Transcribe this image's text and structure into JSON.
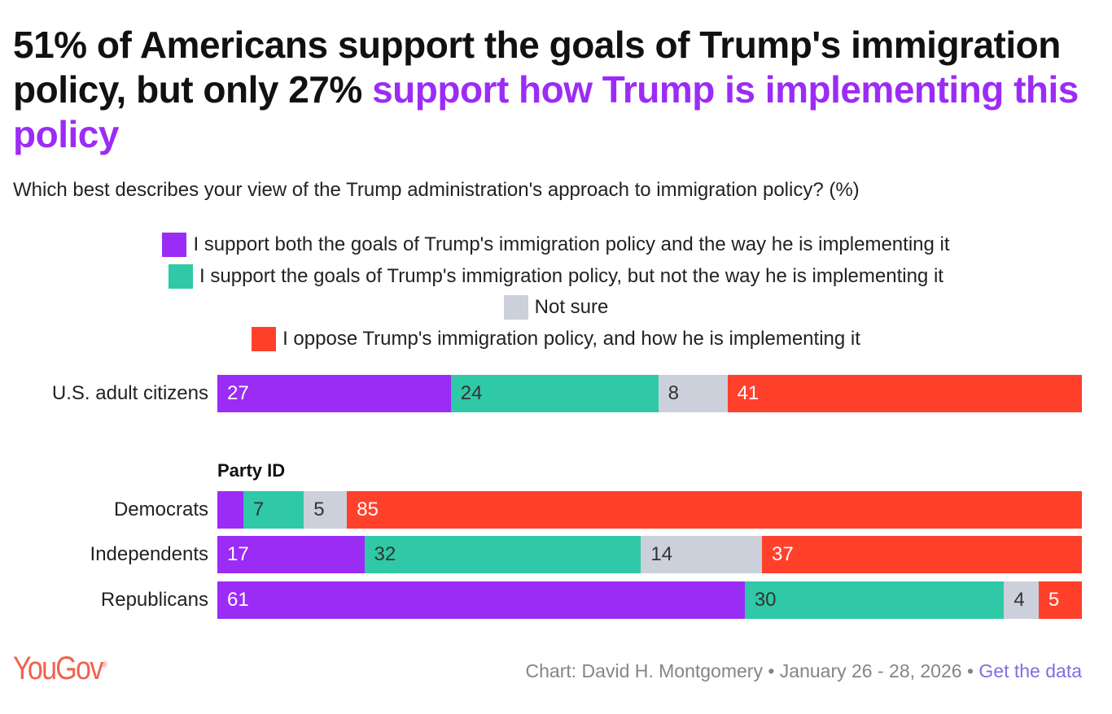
{
  "title_plain": "51% of Americans support the goals of Trump's immigration policy, but only 27% ",
  "title_highlight": "support how Trump is implementing this policy",
  "subtitle": "Which best describes your view of the Trump administration's approach to immigration policy? (%)",
  "chart_data": {
    "type": "bar",
    "orientation": "horizontal-stacked",
    "series": [
      {
        "name": "I support both the goals of Trump's immigration policy and the way he is implementing it",
        "color": "#9b2cf5",
        "label_color": "#ffffff",
        "values": [
          27,
          3,
          17,
          61
        ]
      },
      {
        "name": "I support the goals of Trump's immigration policy, but not the way he is implementing it",
        "color": "#2fc9a7",
        "label_color": "#333333",
        "values": [
          24,
          7,
          32,
          30
        ]
      },
      {
        "name": "Not sure",
        "color": "#ccd0db",
        "label_color": "#333333",
        "values": [
          8,
          5,
          14,
          4
        ]
      },
      {
        "name": "I oppose Trump's immigration policy, and how he is implementing it",
        "color": "#ff412c",
        "label_color": "#ffffff",
        "values": [
          41,
          85,
          37,
          5
        ]
      }
    ],
    "categories": [
      "U.S. adult citizens",
      "Democrats",
      "Independents",
      "Republicans"
    ],
    "group_label": "Party ID",
    "xlim": [
      0,
      100
    ]
  },
  "footer": {
    "logo": "YouGov",
    "credit": "Chart: David H. Montgomery • January 26 - 28, 2026 • ",
    "link": "Get the data"
  }
}
